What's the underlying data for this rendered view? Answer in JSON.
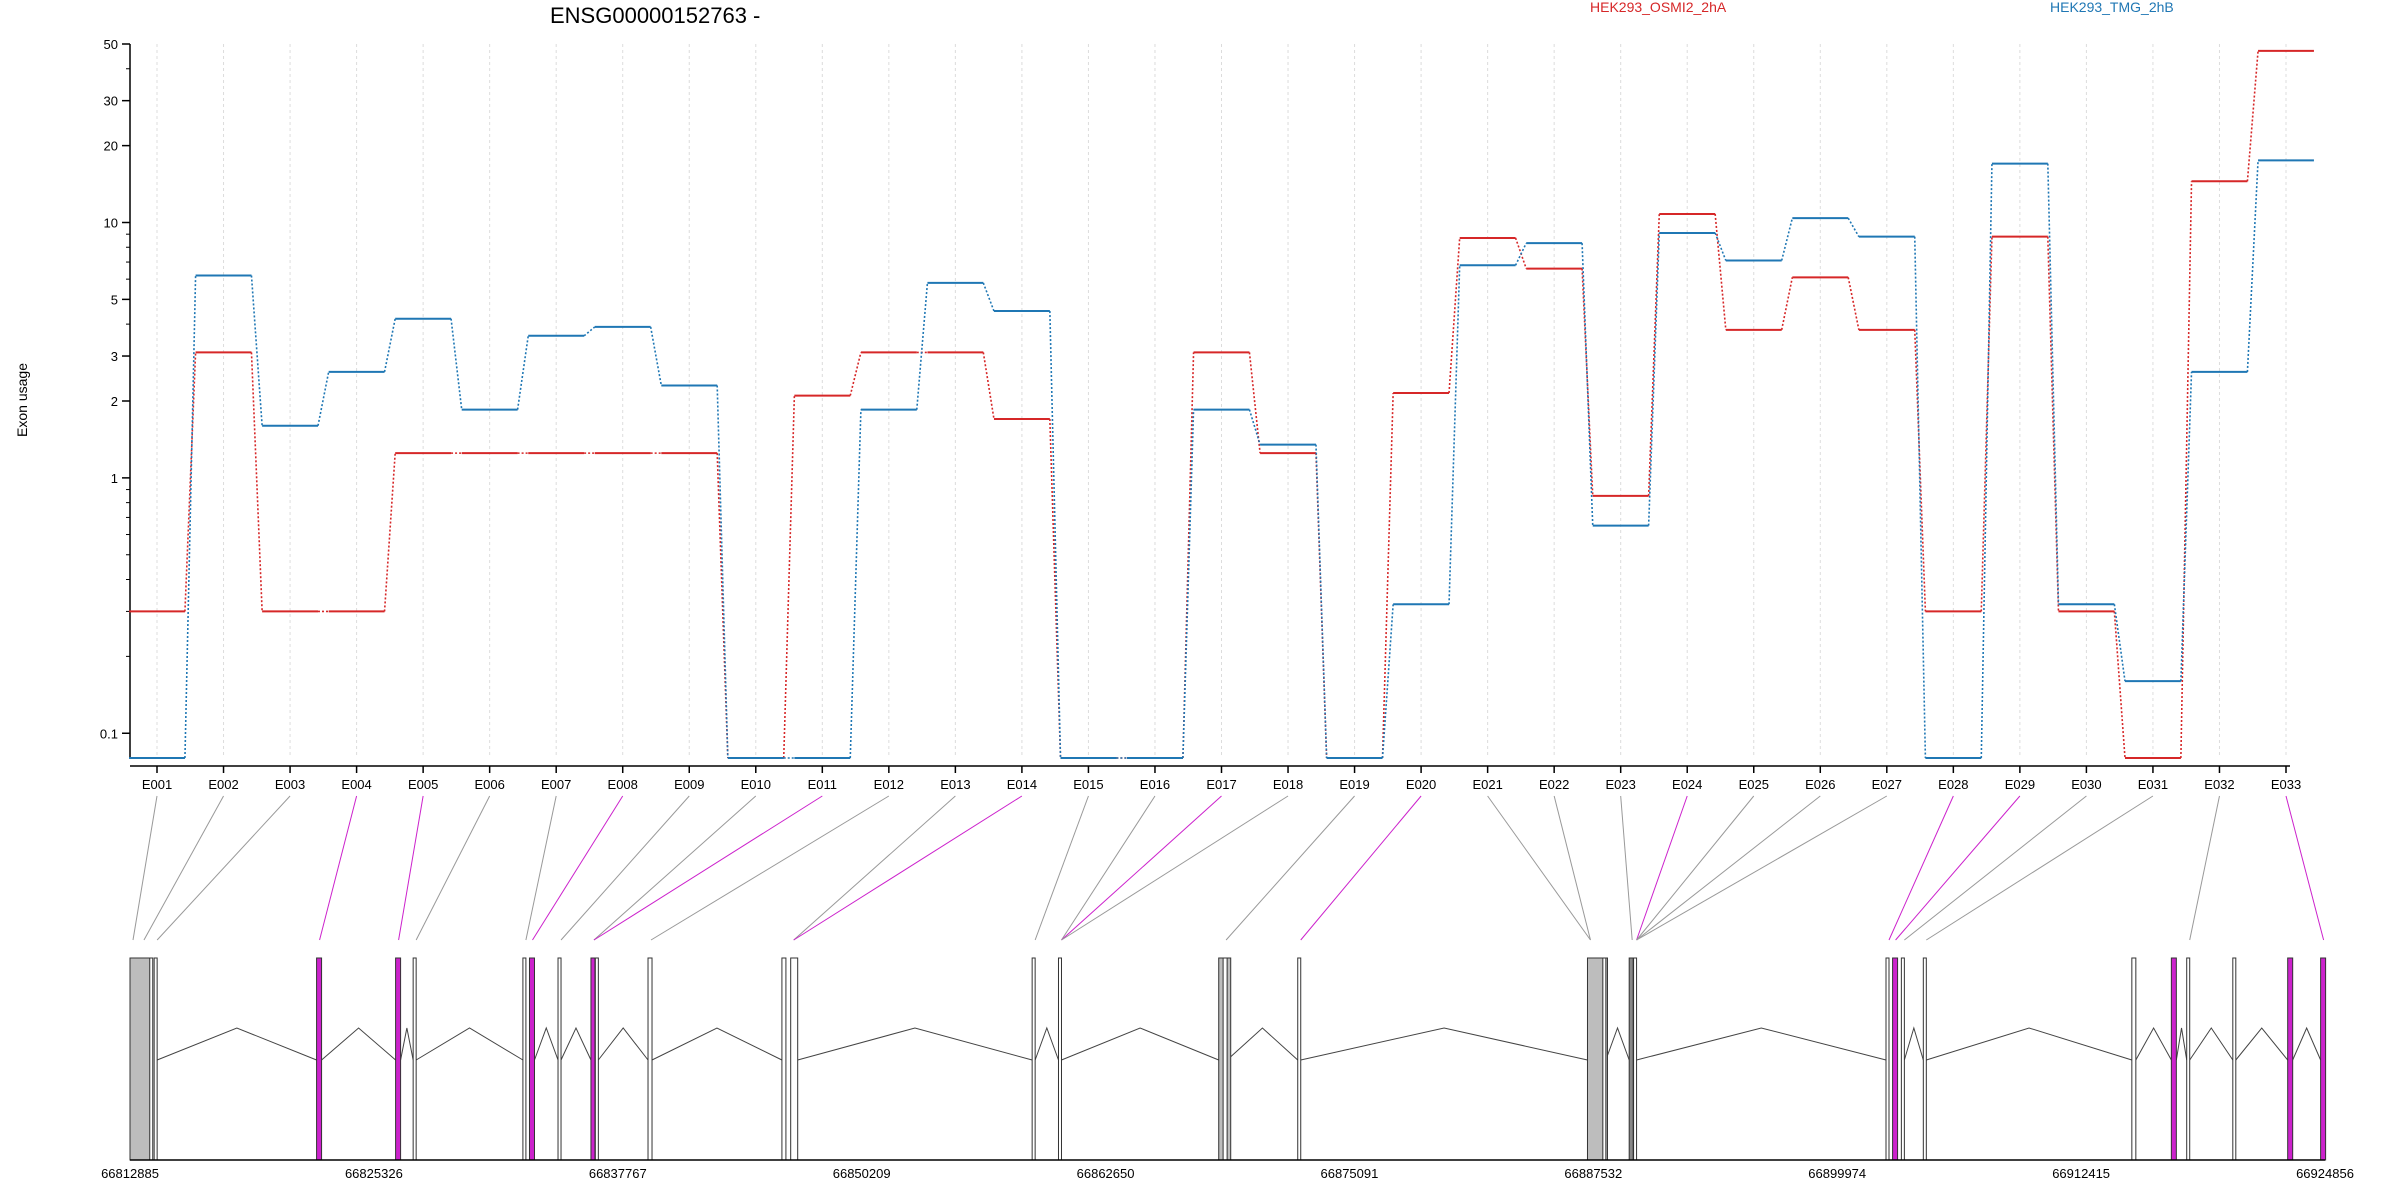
{
  "chart_data": {
    "type": "line",
    "title": "ENSG00000152763 -",
    "xlabel": "",
    "ylabel": "Exon usage",
    "yscale": "log",
    "ylim": [
      0.08,
      50
    ],
    "yticks": [
      0.1,
      1,
      2,
      3,
      5,
      10,
      20,
      30,
      50
    ],
    "yticklabels": [
      "0.1",
      "1",
      "2",
      "3",
      "5",
      "10",
      "20",
      "30",
      "50"
    ],
    "categories": [
      "E001",
      "E002",
      "E003",
      "E004",
      "E005",
      "E006",
      "E007",
      "E008",
      "E009",
      "E010",
      "E011",
      "E012",
      "E013",
      "E014",
      "E015",
      "E016",
      "E017",
      "E018",
      "E019",
      "E020",
      "E021",
      "E022",
      "E023",
      "E024",
      "E025",
      "E026",
      "E027",
      "E028",
      "E029",
      "E030",
      "E031",
      "E032",
      "E033"
    ],
    "series": [
      {
        "name": "HEK293_OSMI2_2hA",
        "color": "#d62728",
        "values": [
          0.3,
          3.1,
          0.3,
          0.3,
          1.25,
          1.25,
          1.25,
          1.25,
          1.25,
          0.08,
          2.1,
          3.1,
          3.1,
          1.7,
          0.08,
          0.08,
          3.1,
          1.25,
          0.08,
          2.15,
          8.7,
          6.6,
          0.85,
          10.8,
          3.8,
          6.1,
          3.8,
          0.3,
          8.8,
          0.3,
          0.08,
          14.5,
          47.0
        ]
      },
      {
        "name": "HEK293_TMG_2hB",
        "color": "#1f77b4",
        "values": [
          0.08,
          6.2,
          1.6,
          2.6,
          4.2,
          1.85,
          3.6,
          3.9,
          2.3,
          0.08,
          0.08,
          1.85,
          5.8,
          4.5,
          0.08,
          0.08,
          1.85,
          1.35,
          0.08,
          0.32,
          6.8,
          8.3,
          0.65,
          9.1,
          7.1,
          10.4,
          8.8,
          0.08,
          17.0,
          0.32,
          0.16,
          2.6,
          17.5
        ]
      }
    ],
    "grid": true,
    "legend_position": "top",
    "gene_model": {
      "coordinates": [
        "66812885",
        "66825326",
        "66837767",
        "66850209",
        "66862650",
        "66875091",
        "66887532",
        "66899974",
        "66912415",
        "66924856"
      ],
      "highlight_color": "#cc22cc",
      "exon_color": "#bdbdbd"
    }
  }
}
